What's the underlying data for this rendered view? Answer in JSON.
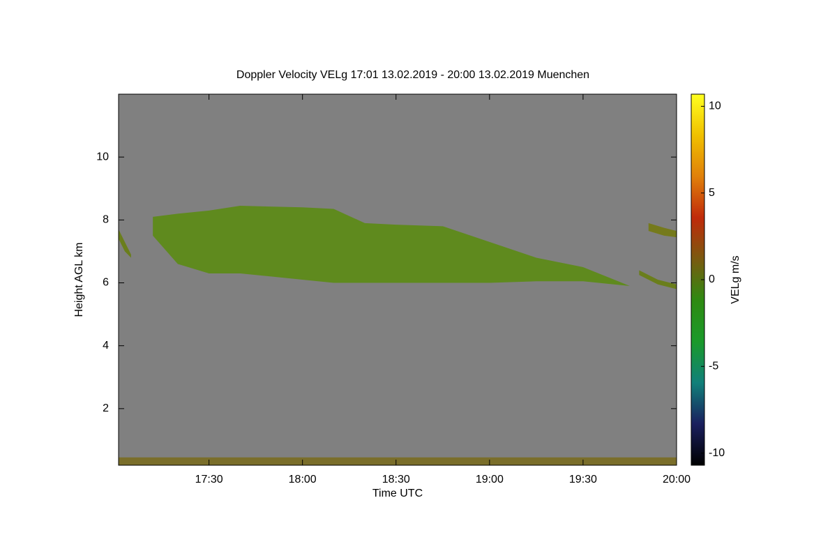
{
  "chart_data": {
    "type": "time-height",
    "title": "Doppler Velocity VELg   17:01 13.02.2019 - 20:00 13.02.2019 Muenchen",
    "xlabel": "Time UTC",
    "ylabel": "Height AGL km",
    "clabel": "VELg m/s",
    "xlim": [
      1021,
      1200
    ],
    "xticks": [
      {
        "value": 1050,
        "label": "17:30"
      },
      {
        "value": 1080,
        "label": "18:00"
      },
      {
        "value": 1110,
        "label": "18:30"
      },
      {
        "value": 1140,
        "label": "19:00"
      },
      {
        "value": 1170,
        "label": "19:30"
      },
      {
        "value": 1200,
        "label": "20:00"
      }
    ],
    "ylim": [
      0.2,
      12
    ],
    "yticks": [
      2,
      4,
      6,
      8,
      10
    ],
    "clim": [
      -10.7,
      10.7
    ],
    "cticks": [
      -10,
      -5,
      0,
      5,
      10
    ],
    "background": "#808080",
    "colormap": [
      "#000000",
      "#1a1f5e",
      "#11807a",
      "#1a9a2a",
      "#2e8a12",
      "#7a5a10",
      "#c02a0a",
      "#e0800a",
      "#f0c000",
      "#ffff20"
    ],
    "areas": [
      {
        "x": [
          1032,
          1040,
          1050,
          1060,
          1080,
          1090,
          1100,
          1110,
          1125,
          1140,
          1155,
          1170,
          1185
        ],
        "top": [
          8.1,
          8.2,
          8.3,
          8.45,
          8.4,
          8.35,
          7.9,
          7.85,
          7.8,
          7.3,
          6.8,
          6.5,
          5.9
        ],
        "base": [
          7.5,
          6.6,
          6.3,
          6.3,
          6.1,
          6.0,
          6.0,
          6.0,
          6.0,
          6.0,
          6.05,
          6.05,
          5.9
        ],
        "color": "#5f8a1e"
      },
      {
        "x": [
          1021,
          1023,
          1025
        ],
        "top": [
          7.7,
          7.3,
          6.9
        ],
        "base": [
          7.4,
          7.0,
          6.8
        ],
        "color": "#6a7e1c"
      },
      {
        "x": [
          1191,
          1196,
          1200
        ],
        "top": [
          7.9,
          7.75,
          7.65
        ],
        "base": [
          7.65,
          7.5,
          7.45
        ],
        "color": "#757a1c"
      },
      {
        "x": [
          1188,
          1194,
          1200
        ],
        "top": [
          6.4,
          6.1,
          5.95
        ],
        "base": [
          6.25,
          5.95,
          5.8
        ],
        "color": "#6a7e1c"
      },
      {
        "x": [
          1021,
          1200
        ],
        "top": [
          0.45,
          0.45
        ],
        "base": [
          0.2,
          0.2
        ],
        "color": "#7a6e2a"
      }
    ]
  }
}
